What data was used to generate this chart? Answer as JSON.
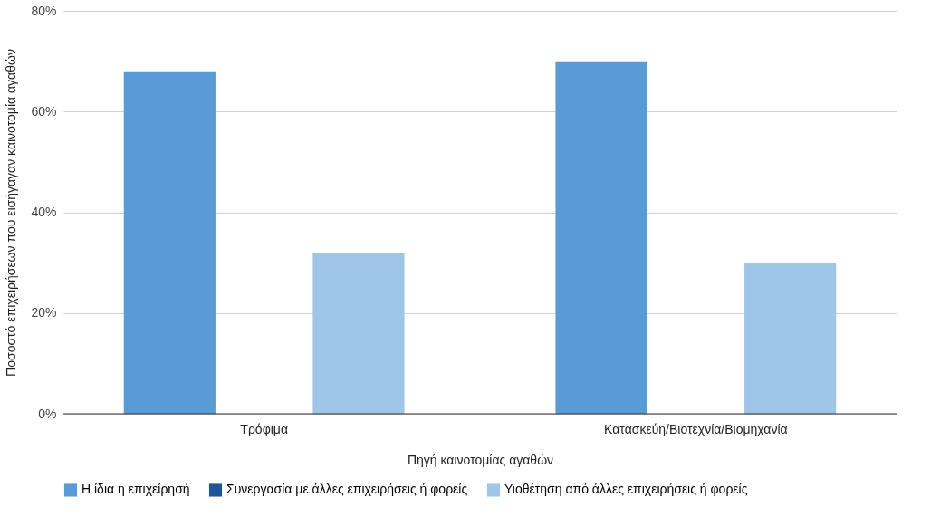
{
  "chart_data": {
    "type": "bar",
    "xlabel": "Πηγή καινοτομίας αγαθών",
    "ylabel": "Ποσοστό επιχειρήσεων που εισήγαγαν καινοτομία αγαθών",
    "categories": [
      "Τρόφιμα",
      "Κατασκεύη/Βιοτεχνία/Βιομηχανία"
    ],
    "series": [
      {
        "name": "Η ίδια η επιχείρησή",
        "color": "#5b9bd5",
        "values": [
          68,
          70
        ]
      },
      {
        "name": "Συνεργασία με άλλες επιχειρήσεις ή φορείς",
        "color": "#1f5597",
        "values": [
          0,
          0
        ]
      },
      {
        "name": "Υιοθέτηση από άλλες επιχειρήσεις ή φορείς",
        "color": "#9fc5e8",
        "values": [
          32,
          30
        ]
      }
    ],
    "ylim": [
      0,
      80
    ],
    "yticks": [
      {
        "value": 0,
        "label": "0%"
      },
      {
        "value": 20,
        "label": "20%"
      },
      {
        "value": 40,
        "label": "40%"
      },
      {
        "value": 60,
        "label": "60%"
      },
      {
        "value": 80,
        "label": "80%"
      }
    ],
    "grid": "y",
    "legend": "bottom"
  }
}
